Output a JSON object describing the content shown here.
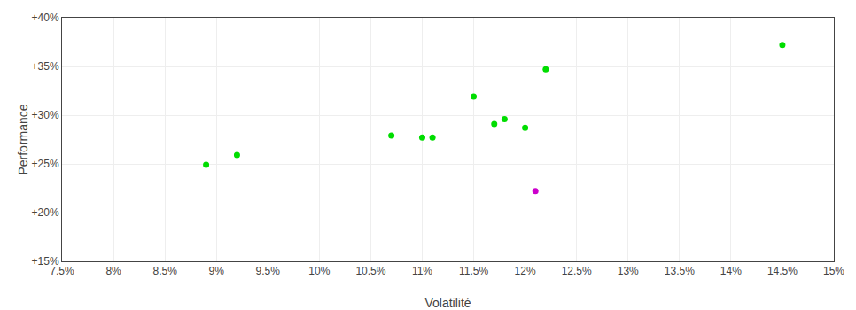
{
  "chart_data": {
    "type": "scatter",
    "xlabel": "Volatilité",
    "ylabel": "Performance",
    "xlim": [
      0.075,
      0.15
    ],
    "ylim": [
      0.15,
      0.4
    ],
    "xticks": [
      {
        "value": 0.075,
        "label": "7.5%"
      },
      {
        "value": 0.08,
        "label": "8%"
      },
      {
        "value": 0.085,
        "label": "8.5%"
      },
      {
        "value": 0.09,
        "label": "9%"
      },
      {
        "value": 0.095,
        "label": "9.5%"
      },
      {
        "value": 0.1,
        "label": "10%"
      },
      {
        "value": 0.105,
        "label": "10.5%"
      },
      {
        "value": 0.11,
        "label": "11%"
      },
      {
        "value": 0.115,
        "label": "11.5%"
      },
      {
        "value": 0.12,
        "label": "12%"
      },
      {
        "value": 0.125,
        "label": "12.5%"
      },
      {
        "value": 0.13,
        "label": "13%"
      },
      {
        "value": 0.135,
        "label": "13.5%"
      },
      {
        "value": 0.14,
        "label": "14%"
      },
      {
        "value": 0.145,
        "label": "14.5%"
      },
      {
        "value": 0.15,
        "label": "15%"
      }
    ],
    "yticks": [
      {
        "value": 0.15,
        "label": "+15%"
      },
      {
        "value": 0.2,
        "label": "+20%"
      },
      {
        "value": 0.25,
        "label": "+25%"
      },
      {
        "value": 0.3,
        "label": "+30%"
      },
      {
        "value": 0.35,
        "label": "+35%"
      },
      {
        "value": 0.4,
        "label": "+40%"
      }
    ],
    "grid": true,
    "marker": "circle",
    "series": [
      {
        "color": "#00dd00",
        "x": [
          0.089,
          0.092,
          0.107,
          0.11,
          0.111,
          0.115,
          0.117,
          0.118,
          0.12,
          0.122,
          0.145
        ],
        "values": [
          0.249,
          0.259,
          0.279,
          0.277,
          0.277,
          0.319,
          0.291,
          0.296,
          0.287,
          0.347,
          0.372
        ]
      },
      {
        "color": "#cc00cc",
        "x": [
          0.121
        ],
        "values": [
          0.222
        ]
      }
    ]
  }
}
